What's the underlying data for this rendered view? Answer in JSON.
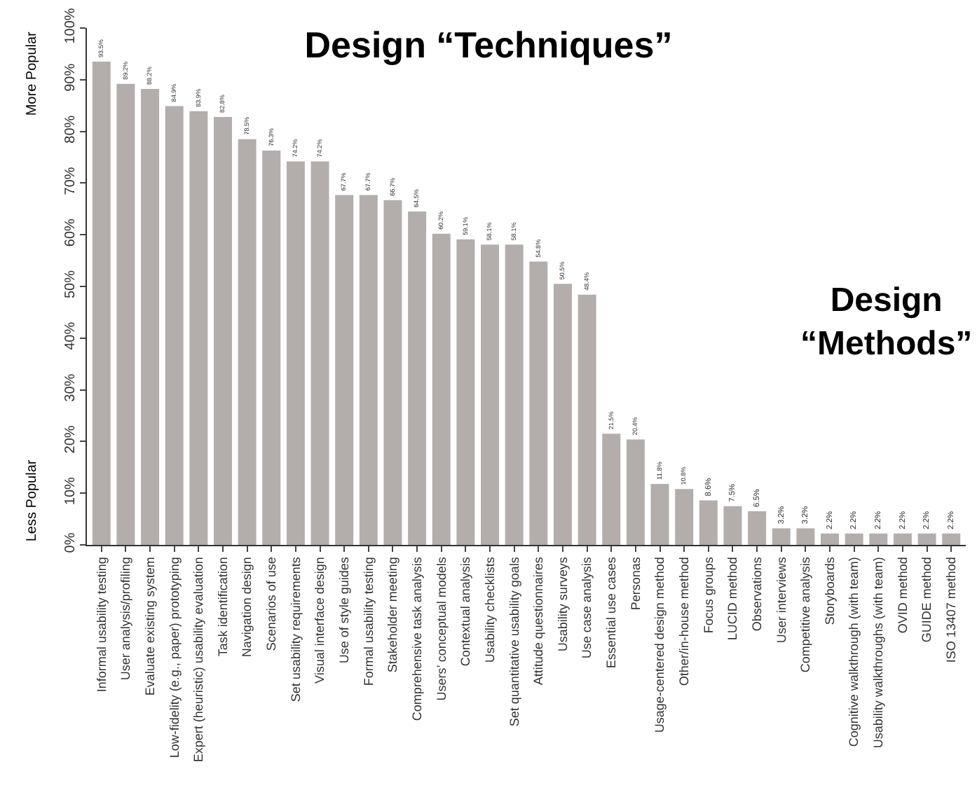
{
  "chart_data": {
    "type": "bar",
    "title": "Design “Techniques”",
    "annotations": [
      "More Popular",
      "Less Popular",
      "Design\n“Methods”"
    ],
    "categories": [
      "Informal usability testing",
      "User analysis/profiling",
      "Evaluate existing system",
      "Low-fidelity (e.g., paper) prototyping",
      "Expert (heuristic) usability evaluation",
      "Task identification",
      "Navigation design",
      "Scenarios of use",
      "Set usability requirements",
      "Visual interface design",
      "Use of style guides",
      "Formal usability testing",
      "Stakeholder meeting",
      "Comprehensive task analysis",
      "Users’ conceptual models",
      "Contextual analysis",
      "Usability checklists",
      "Set quantitative usability goals",
      "Attitude questionnaires",
      "Usability surveys",
      "Use case analysis",
      "Essential use cases",
      "Personas",
      "Usage-centered design method",
      "Other/in-house method",
      "Focus groups",
      "LUCID method",
      "Observations",
      "User interviews",
      "Competitive analysis",
      "Storyboards",
      "Cognitive walkthrough (with team)",
      "Usability walkthroughs (with team)",
      "OVID method",
      "GUIDE method",
      "ISO 13407 method"
    ],
    "values": [
      93.5,
      89.2,
      88.2,
      84.9,
      83.9,
      82.8,
      78.5,
      76.3,
      74.2,
      74.2,
      67.7,
      67.7,
      66.7,
      64.5,
      60.2,
      59.1,
      58.1,
      58.1,
      54.8,
      50.5,
      48.4,
      21.5,
      20.4,
      11.8,
      10.8,
      8.6,
      7.5,
      6.5,
      3.2,
      3.2,
      2.2,
      2.2,
      2.2,
      2.2,
      2.2,
      2.2
    ],
    "value_labels": [
      "93.5%",
      "89.2%",
      "88.2%",
      "84.9%",
      "83.9%",
      "82.8%",
      "78.5%",
      "76.3%",
      "74.2%",
      "74.2%",
      "67.7%",
      "67.7%",
      "66.7%",
      "64.5%",
      "60.2%",
      "59.1%",
      "58.1%",
      "58.1%",
      "54.8%",
      "50.5%",
      "48.4%",
      "21.5%",
      "20.4%",
      "11.8%",
      "10.8%",
      "8.6%",
      "7.5%",
      "6.5%",
      "3.2%",
      "3.2%",
      "2.2%",
      "2.2%",
      "2.2%",
      "2.2%",
      "2.2%",
      "2.2%"
    ],
    "color": "#b3aeab",
    "ylim": [
      0,
      100
    ],
    "yticks": [
      {
        "value": 0,
        "label": "0%"
      },
      {
        "value": 10,
        "label": "10%"
      },
      {
        "value": 20,
        "label": "20%"
      },
      {
        "value": 30,
        "label": "30%"
      },
      {
        "value": 40,
        "label": "40%"
      },
      {
        "value": 50,
        "label": "50%"
      },
      {
        "value": 60,
        "label": "60%"
      },
      {
        "value": 70,
        "label": "70%"
      },
      {
        "value": 80,
        "label": "80%"
      },
      {
        "value": 90,
        "label": "90%"
      },
      {
        "value": 100,
        "label": "100%"
      }
    ],
    "grid": false,
    "legend": false
  }
}
